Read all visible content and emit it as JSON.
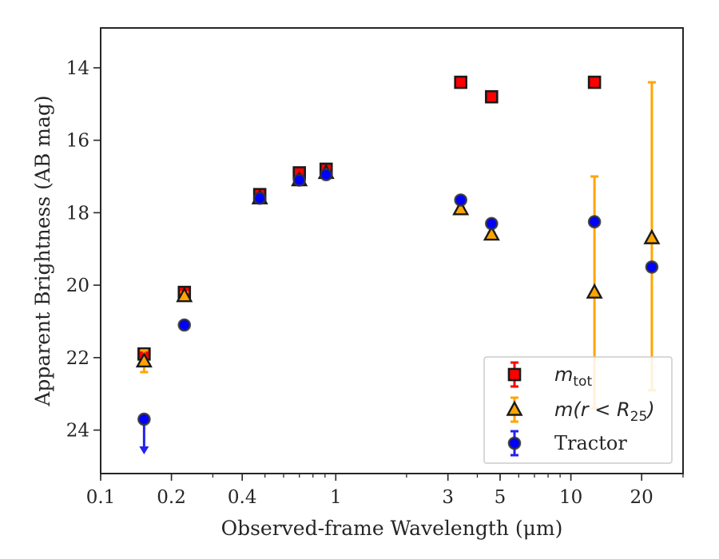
{
  "chart_data": {
    "type": "scatter",
    "xlabel": "Observed-frame Wavelength (μm)",
    "ylabel": "Apparent Brightness (AB mag)",
    "x_scale": "log",
    "xlim": [
      0.1,
      30
    ],
    "ylim": [
      25.2,
      12.9
    ],
    "y_inverted": true,
    "x_ticks": [
      0.1,
      0.2,
      0.4,
      1,
      3,
      5,
      10,
      20
    ],
    "x_tick_labels": [
      "0.1",
      "0.2",
      "0.4",
      "1",
      "3",
      "5",
      "10",
      "20"
    ],
    "y_ticks": [
      14,
      16,
      18,
      20,
      22,
      24
    ],
    "y_tick_labels": [
      "14",
      "16",
      "18",
      "20",
      "22",
      "24"
    ],
    "grid": false,
    "legend_position": "bottom-right",
    "series": [
      {
        "name": "m_tot",
        "legend_main": "m",
        "legend_sub": "tot",
        "marker": "square",
        "color": "#ff0000",
        "edge_color": "#1a1a1a",
        "points": [
          {
            "x": 0.153,
            "y": 21.9,
            "err": 0.1
          },
          {
            "x": 0.227,
            "y": 20.2,
            "err": 0.1
          },
          {
            "x": 0.475,
            "y": 17.5,
            "err": 0.05
          },
          {
            "x": 0.7,
            "y": 16.9,
            "err": 0.05
          },
          {
            "x": 0.91,
            "y": 16.8,
            "err": 0.05
          },
          {
            "x": 3.4,
            "y": 14.4,
            "err": 0.05
          },
          {
            "x": 4.6,
            "y": 14.8,
            "err": 0.05
          },
          {
            "x": 12.6,
            "y": 14.4,
            "err": 0.05
          }
        ]
      },
      {
        "name": "m(r<R_25)",
        "legend_main": "m(r < R",
        "legend_sub": "25",
        "legend_tail": ")",
        "marker": "triangle",
        "color": "#ffa500",
        "edge_color": "#1a1a1a",
        "points": [
          {
            "x": 0.153,
            "y": 22.1,
            "err": 0.3
          },
          {
            "x": 0.227,
            "y": 20.3,
            "err": 0.1
          },
          {
            "x": 0.475,
            "y": 17.6,
            "err": 0.05
          },
          {
            "x": 0.7,
            "y": 17.1,
            "err": 0.05
          },
          {
            "x": 0.91,
            "y": 16.9,
            "err": 0.05
          },
          {
            "x": 3.4,
            "y": 17.9,
            "err": 0.05
          },
          {
            "x": 4.6,
            "y": 18.6,
            "err": 0.05
          },
          {
            "x": 12.6,
            "y": 20.2,
            "err_lo": 3.2,
            "err_hi": 3.2
          },
          {
            "x": 22.1,
            "y": 18.7,
            "err_lo": 4.2,
            "err_hi": 4.3
          }
        ]
      },
      {
        "name": "Tractor",
        "marker": "circle",
        "color": "#0000ff",
        "edge_color": "#333333",
        "points": [
          {
            "x": 0.153,
            "y": 23.7,
            "upper_limit": true
          },
          {
            "x": 0.227,
            "y": 21.1,
            "err": 0.05
          },
          {
            "x": 0.475,
            "y": 17.6,
            "err": 0.05
          },
          {
            "x": 0.7,
            "y": 17.1,
            "err": 0.05
          },
          {
            "x": 0.91,
            "y": 16.95,
            "err": 0.05
          },
          {
            "x": 3.4,
            "y": 17.65,
            "err": 0.05
          },
          {
            "x": 4.6,
            "y": 18.3,
            "err": 0.05
          },
          {
            "x": 12.6,
            "y": 18.25,
            "err": 0.05
          },
          {
            "x": 22.1,
            "y": 19.5,
            "err": 0.05
          }
        ]
      }
    ]
  }
}
